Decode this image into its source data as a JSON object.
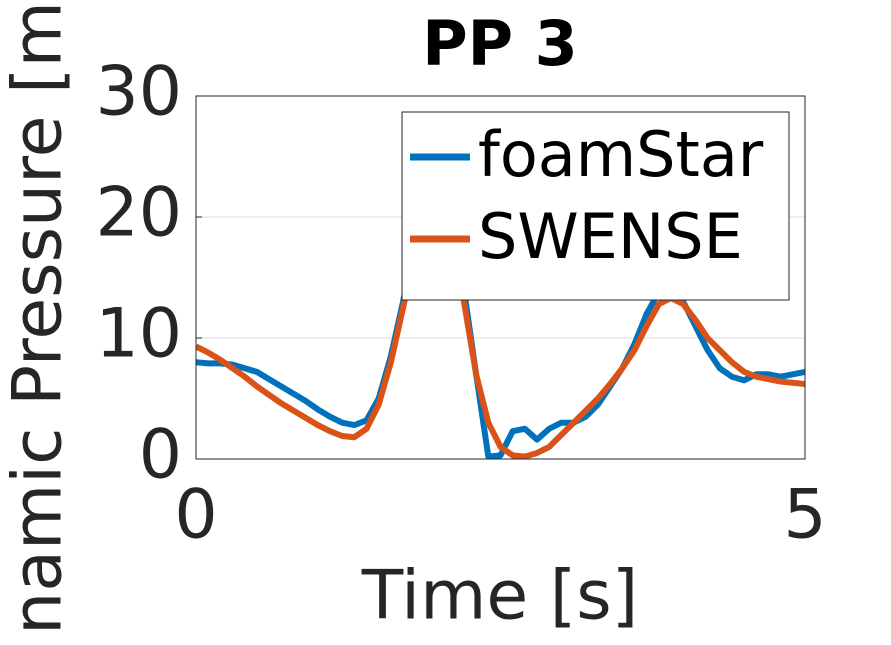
{
  "chart_data": {
    "type": "line",
    "title": "PP 3",
    "x_label": "Time [s]",
    "y_label": "namic Pressure [m",
    "x": [
      0,
      0.1,
      0.2,
      0.3,
      0.4,
      0.5,
      0.6,
      0.7,
      0.8,
      0.9,
      1.0,
      1.1,
      1.2,
      1.3,
      1.4,
      1.5,
      1.6,
      1.7,
      1.8,
      1.9,
      2.0,
      2.1,
      2.2,
      2.3,
      2.4,
      2.5,
      2.6,
      2.7,
      2.8,
      2.9,
      3.0,
      3.1,
      3.2,
      3.3,
      3.4,
      3.5,
      3.6,
      3.7,
      3.8,
      3.9,
      4.0,
      4.1,
      4.2,
      4.3,
      4.4,
      4.5,
      4.6,
      4.7,
      4.8,
      4.9,
      5.0
    ],
    "series": [
      {
        "name": "foamStar",
        "color": "#0072bd",
        "values": [
          8,
          7.9,
          7.9,
          7.8,
          7.5,
          7.2,
          6.6,
          6,
          5.4,
          4.8,
          4.1,
          3.5,
          3,
          2.8,
          3.2,
          5,
          8.5,
          13,
          18,
          22,
          24,
          20,
          14,
          7,
          0.2,
          0.3,
          2.3,
          2.5,
          1.6,
          2.5,
          3,
          3,
          3.5,
          4.5,
          6,
          7.5,
          9.5,
          12,
          13.8,
          14,
          13,
          11,
          9,
          7.5,
          6.8,
          6.5,
          7,
          7,
          6.8,
          7,
          7.2
        ]
      },
      {
        "name": "SWENSE",
        "color": "#d95319",
        "values": [
          9.3,
          8.8,
          8.2,
          7.5,
          6.8,
          6,
          5.3,
          4.6,
          4,
          3.4,
          2.8,
          2.3,
          1.9,
          1.8,
          2.5,
          4.5,
          8,
          12.5,
          17,
          21,
          23,
          19,
          13,
          7,
          3,
          1,
          0.3,
          0.2,
          0.5,
          1,
          2,
          3,
          4,
          5,
          6.2,
          7.5,
          9,
          11,
          12.8,
          13.3,
          12.8,
          11.5,
          10,
          9,
          8,
          7.2,
          6.8,
          6.6,
          6.4,
          6.3,
          6.2
        ]
      }
    ],
    "xlim": [
      0,
      5
    ],
    "xticks": [
      0,
      5
    ],
    "ylim": [
      0,
      30
    ],
    "yticks": [
      0,
      10,
      20,
      30
    ],
    "grid": true,
    "legend": "upper-right"
  }
}
